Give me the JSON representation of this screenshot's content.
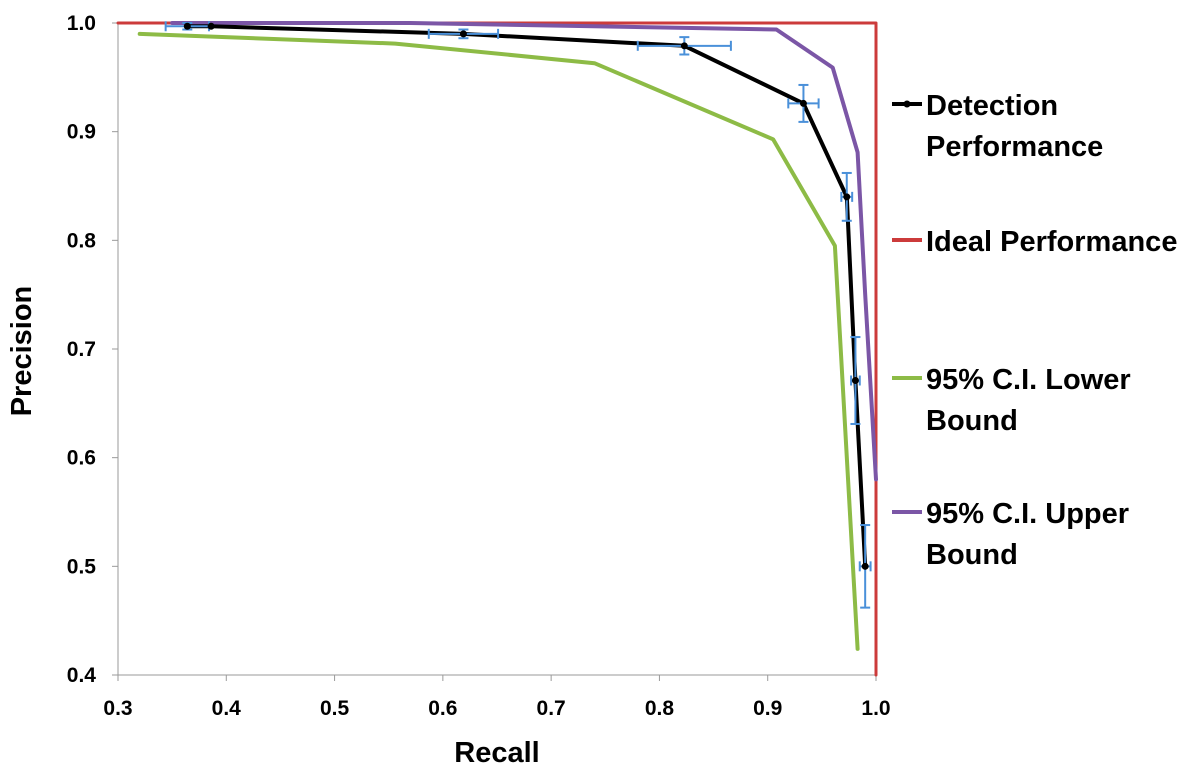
{
  "chart_data": {
    "type": "line",
    "xlabel": "Recall",
    "ylabel": "Precision",
    "xlim": [
      0.3,
      1.0
    ],
    "ylim": [
      0.4,
      1.0
    ],
    "xticks": [
      "0.3",
      "0.4",
      "0.5",
      "0.6",
      "0.7",
      "0.8",
      "0.9",
      "1.0"
    ],
    "yticks": [
      "0.4",
      "0.5",
      "0.6",
      "0.7",
      "0.8",
      "0.9",
      "1.0"
    ],
    "grid": false,
    "legend_position": "right",
    "series": [
      {
        "name": "Detection Performance",
        "color": "#000000",
        "markers": true,
        "points": [
          {
            "x": 0.364,
            "y": 0.997,
            "xerr": 0.02,
            "yerr": 0.003
          },
          {
            "x": 0.386,
            "y": 0.997,
            "xerr": 0.0,
            "yerr": 0.0
          },
          {
            "x": 0.619,
            "y": 0.99,
            "xerr": 0.032,
            "yerr": 0.004
          },
          {
            "x": 0.823,
            "y": 0.979,
            "xerr": 0.043,
            "yerr": 0.008
          },
          {
            "x": 0.933,
            "y": 0.926,
            "xerr": 0.014,
            "yerr": 0.017
          },
          {
            "x": 0.973,
            "y": 0.84,
            "xerr": 0.005,
            "yerr": 0.022
          },
          {
            "x": 0.981,
            "y": 0.671,
            "xerr": 0.004,
            "yerr": 0.04
          },
          {
            "x": 0.99,
            "y": 0.5,
            "xerr": 0.005,
            "yerr": 0.038
          }
        ]
      },
      {
        "name": "Ideal Performance",
        "color": "#cc3b3b",
        "markers": false,
        "points": [
          {
            "x": 0.3,
            "y": 1.0
          },
          {
            "x": 1.0,
            "y": 1.0
          },
          {
            "x": 1.0,
            "y": 0.4
          }
        ]
      },
      {
        "name": "95% C.I. Lower Bound",
        "color": "#8dbb46",
        "markers": false,
        "points": [
          {
            "x": 0.32,
            "y": 0.99
          },
          {
            "x": 0.556,
            "y": 0.981
          },
          {
            "x": 0.74,
            "y": 0.963
          },
          {
            "x": 0.905,
            "y": 0.893
          },
          {
            "x": 0.962,
            "y": 0.795
          },
          {
            "x": 0.983,
            "y": 0.424
          }
        ]
      },
      {
        "name": "95% C.I. Upper Bound",
        "color": "#7b56a6",
        "markers": false,
        "points": [
          {
            "x": 0.35,
            "y": 1.0
          },
          {
            "x": 0.57,
            "y": 1.0
          },
          {
            "x": 0.908,
            "y": 0.994
          },
          {
            "x": 0.96,
            "y": 0.959
          },
          {
            "x": 0.983,
            "y": 0.881
          },
          {
            "x": 0.99,
            "y": 0.75
          },
          {
            "x": 1.0,
            "y": 0.58
          }
        ]
      }
    ],
    "legend": [
      {
        "series": 0,
        "lines": [
          "Detection",
          "Performance"
        ]
      },
      {
        "series": 1,
        "lines": [
          "Ideal Performance"
        ]
      },
      {
        "series": 2,
        "lines": [
          "95% C.I. Lower",
          "Bound"
        ]
      },
      {
        "series": 3,
        "lines": [
          "95% C.I. Upper",
          "Bound"
        ]
      }
    ],
    "errorbar_color": "#4a90d9"
  }
}
